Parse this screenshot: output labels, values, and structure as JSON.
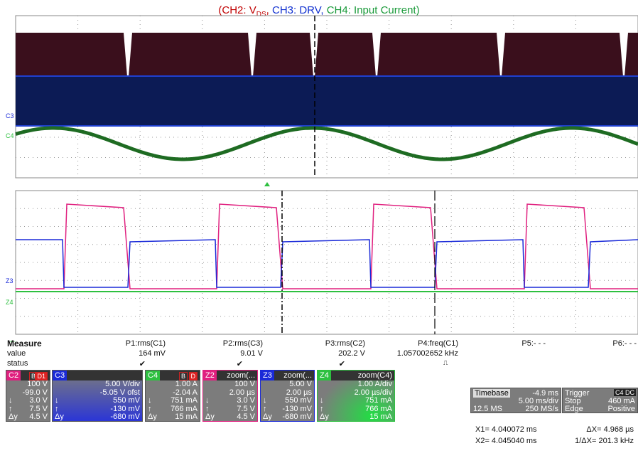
{
  "title": {
    "parts": [
      {
        "text": "(CH2: V",
        "color": "#c00000"
      },
      {
        "text": "DS",
        "color": "#c00000",
        "sub": true
      },
      {
        "text": ", ",
        "color": "#c00000"
      },
      {
        "text": "CH3: DRV",
        "color": "#1030d0"
      },
      {
        "text": ", ",
        "color": "#1030d0"
      },
      {
        "text": "CH4: Input Current)",
        "color": "#1a9a3a"
      }
    ]
  },
  "scope": {
    "top_labels": [
      "C3",
      "C4"
    ],
    "bottom_labels": [
      "Z3",
      "Z4"
    ]
  },
  "measure": {
    "header": "Measure",
    "row_labels": [
      "value",
      "status"
    ],
    "params": [
      {
        "name": "P1:rms(C1)",
        "value": "164 mV",
        "status": "✔"
      },
      {
        "name": "P2:rms(C3)",
        "value": "9.01 V",
        "status": "✔"
      },
      {
        "name": "P3:rms(C2)",
        "value": "202.2 V",
        "status": "✔"
      },
      {
        "name": "P4:freq(C1)",
        "value": "1.057002652 kHz"
      },
      {
        "name": "P5:- - -"
      },
      {
        "name": "P6:- - -"
      }
    ]
  },
  "channels": [
    {
      "label": "C2",
      "color": "#e0207f",
      "tags": [
        "B",
        "D1"
      ],
      "scale": "100 V",
      "offset": "-99.0 V",
      "rows": [
        {
          "symbol": "↓",
          "value": "3.0 V"
        },
        {
          "symbol": "↑",
          "value": "7.5 V"
        },
        {
          "symbol": "Δy",
          "value": "4.5 V"
        }
      ]
    },
    {
      "label": "C3",
      "color": "#1a2ad8",
      "scale": "5.00 V/div",
      "offset": "-5.05 V ofst",
      "rows": [
        {
          "symbol": "↓",
          "value": "550 mV"
        },
        {
          "symbol": "↑",
          "value": "-130 mV"
        },
        {
          "symbol": "Δy",
          "value": "-680 mV"
        }
      ]
    },
    {
      "label": "C4",
      "color": "#2ec040",
      "tags": [
        "B",
        "D"
      ],
      "scale": "1.00 A",
      "offset": "-2.04 A",
      "rows": [
        {
          "symbol": "↓",
          "value": "751 mA"
        },
        {
          "symbol": "↑",
          "value": "766 mA"
        },
        {
          "symbol": "Δy",
          "value": "15 mA"
        }
      ]
    },
    {
      "label": "Z2",
      "color": "#e0207f",
      "source": "zoom(...",
      "scale": "100 V",
      "offset": "2.00 µs",
      "rows": [
        {
          "symbol": "↓",
          "value": "3.0 V"
        },
        {
          "symbol": "↑",
          "value": "7.5 V"
        },
        {
          "symbol": "Δy",
          "value": "4.5 V"
        }
      ]
    },
    {
      "label": "Z3",
      "color": "#1a2ad8",
      "source": "zoom(...",
      "scale": "5.00 V",
      "offset": "2.00 µs",
      "rows": [
        {
          "symbol": "↓",
          "value": "550 mV"
        },
        {
          "symbol": "↑",
          "value": "-130 mV"
        },
        {
          "symbol": "Δy",
          "value": "-680 mV"
        }
      ]
    },
    {
      "label": "Z4",
      "color": "#2ec040",
      "source": "zoom(C4)",
      "scale": "1.00 A/div",
      "offset": "2.00 µs/div",
      "rows": [
        {
          "symbol": "↓",
          "value": "751 mA"
        },
        {
          "symbol": "↑",
          "value": "766 mA"
        },
        {
          "symbol": "Δy",
          "value": "15 mA"
        }
      ]
    }
  ],
  "timebase": {
    "label": "Timebase",
    "delay": "-4.9 ms",
    "scale": "5.00 ms/div",
    "samples": "12.5 MS",
    "rate": "250 MS/s"
  },
  "trigger": {
    "label": "Trigger",
    "source": "C4 DC",
    "mode": "Stop",
    "level": "460 mA",
    "type": "Edge",
    "slope": "Positive"
  },
  "cursors": {
    "x1": "X1= 4.040072 ms",
    "dx": "ΔX= 4.968 µs",
    "x2": "X2= 4.045040 ms",
    "inv_dx": "1/ΔX= 201.3 kHz"
  }
}
